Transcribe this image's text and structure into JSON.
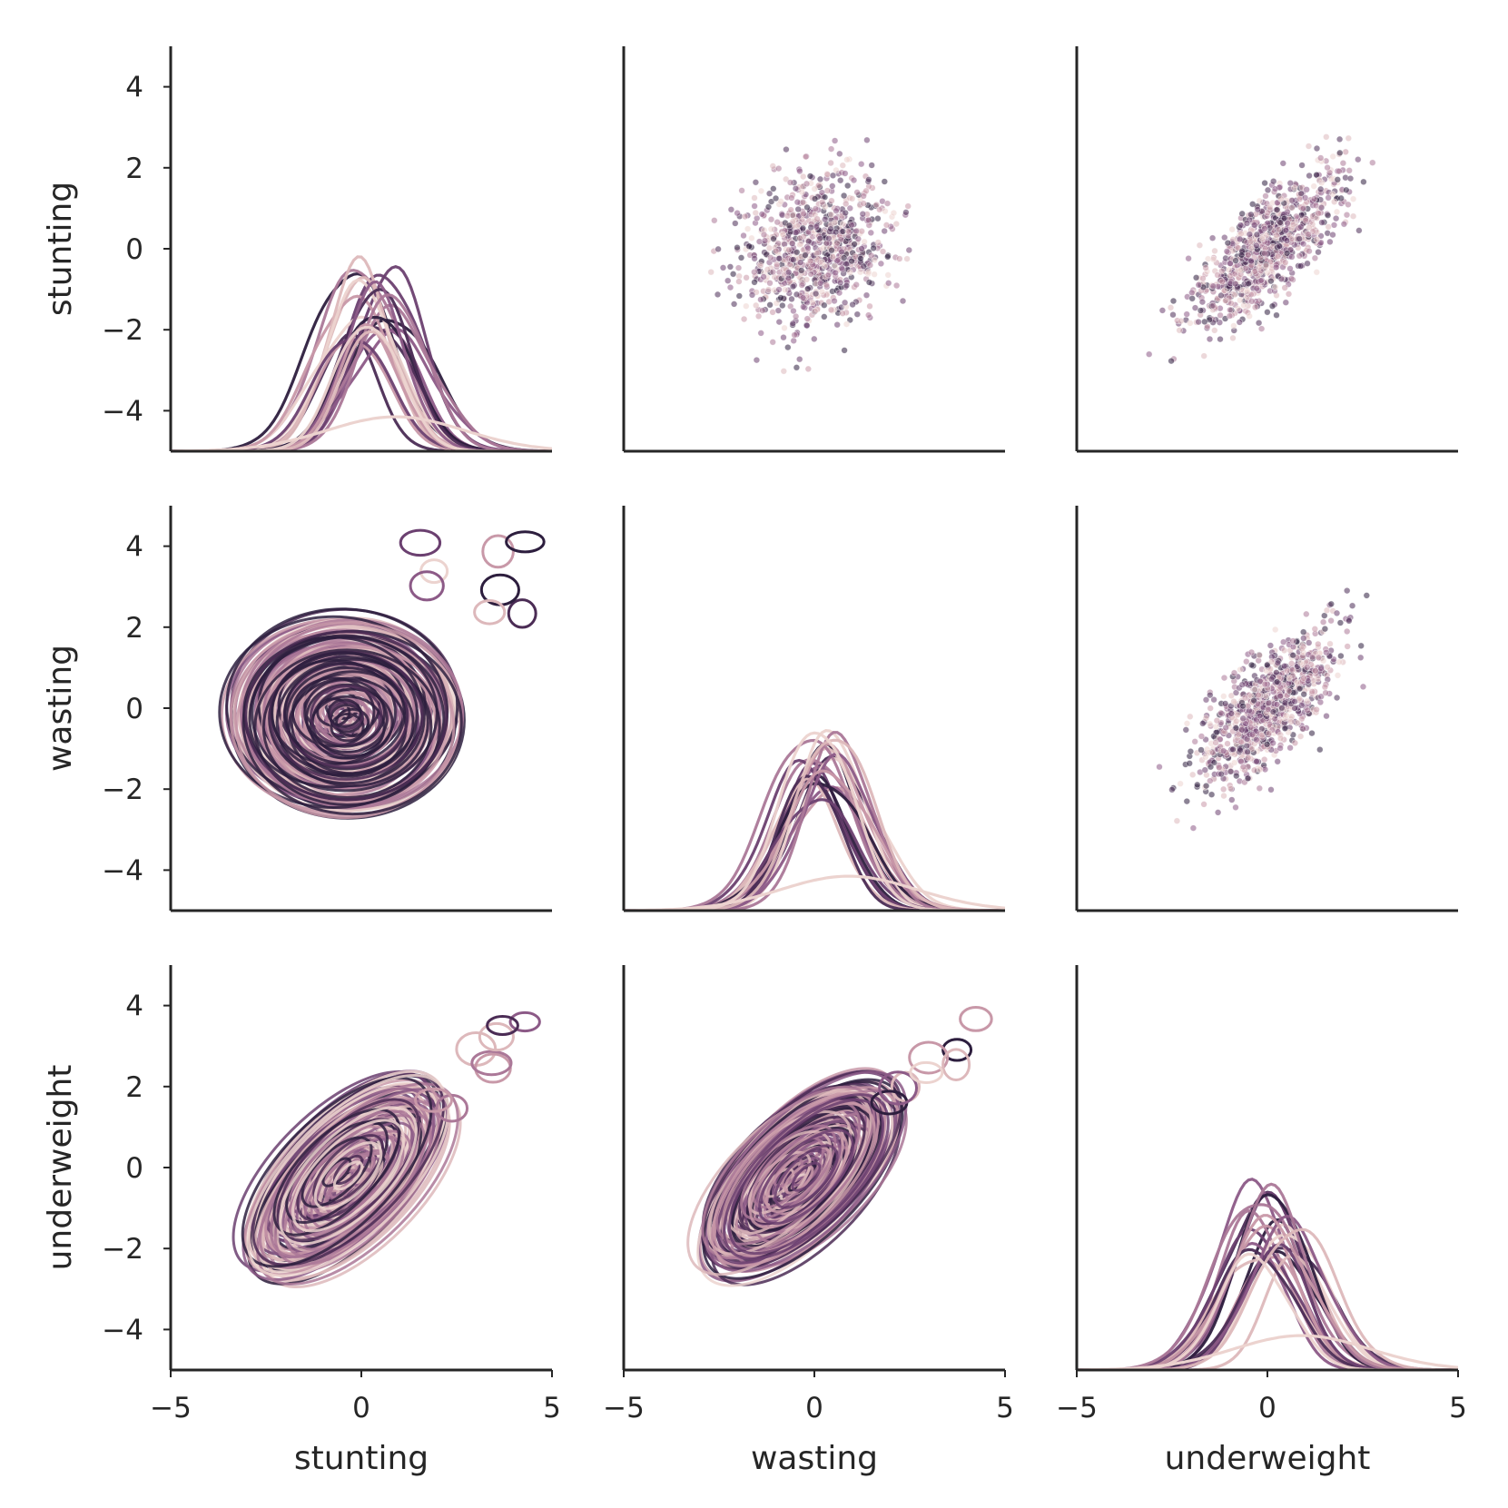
{
  "chart_data": {
    "type": "pairplot",
    "variables": [
      "stunting",
      "wasting",
      "underweight"
    ],
    "xlim": [
      -5,
      5
    ],
    "ylim": [
      -5,
      5
    ],
    "xticks": [
      -5,
      0,
      5
    ],
    "yticks": [
      -4,
      -2,
      0,
      2,
      4
    ],
    "diagonal": "kde",
    "upper": "scatter",
    "lower": "kde-contour",
    "grid": false,
    "legend": "none",
    "hue_palette": [
      "#2d1e3e",
      "#4b2c55",
      "#6b4070",
      "#8c5a87",
      "#ab7898",
      "#c898a8",
      "#ddb8bb",
      "#ecd3cf"
    ],
    "correlations": {
      "stunting-wasting": 0.15,
      "stunting-underweight": 0.75,
      "wasting-underweight": 0.72
    },
    "marginal_peak_spread": {
      "stunting": [
        -0.4,
        0.9
      ],
      "wasting": [
        -0.3,
        0.7
      ],
      "underweight": [
        -0.4,
        0.8
      ]
    },
    "marginal_sd": 0.95,
    "scatter_points_per_panel": 900
  }
}
